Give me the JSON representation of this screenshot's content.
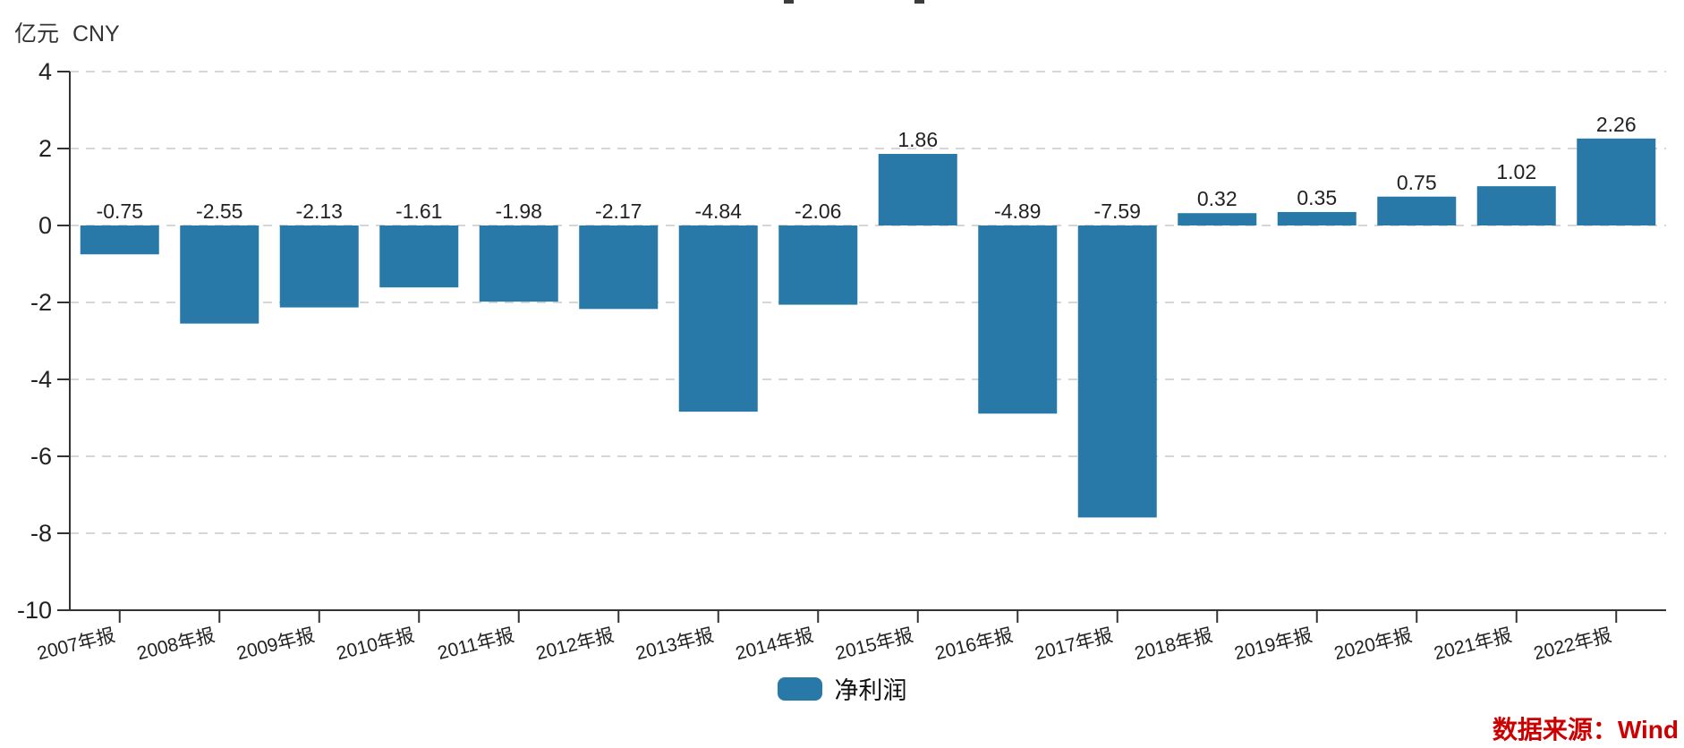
{
  "chart_data": {
    "type": "bar",
    "title": "",
    "unit_label": "亿元 CNY",
    "categories": [
      "2007年报",
      "2008年报",
      "2009年报",
      "2010年报",
      "2011年报",
      "2012年报",
      "2013年报",
      "2014年报",
      "2015年报",
      "2016年报",
      "2017年报",
      "2018年报",
      "2019年报",
      "2020年报",
      "2021年报",
      "2022年报"
    ],
    "series": [
      {
        "name": "净利润",
        "values": [
          -0.75,
          -2.55,
          -2.13,
          -1.61,
          -1.98,
          -2.17,
          -4.84,
          -2.06,
          1.86,
          -4.89,
          -7.59,
          0.32,
          0.35,
          0.75,
          1.02,
          2.26
        ]
      }
    ],
    "ylim": [
      -10,
      4
    ],
    "yticks": [
      4,
      2,
      0,
      -2,
      -4,
      -6,
      -8,
      -10
    ],
    "grid": true,
    "grid_style": "dashed",
    "legend_position": "bottom",
    "bar_color": "#2879a7"
  },
  "legend": {
    "label": "净利润"
  },
  "source_note": {
    "text": "数据来源：Wind",
    "color": "#cc0000"
  },
  "colors": {
    "bar": "#2879a7",
    "gridline": "#d6d6d6",
    "axis": "#333333",
    "tick_text": "#222222",
    "value_label": "#111111",
    "source_red": "#cc0000"
  }
}
